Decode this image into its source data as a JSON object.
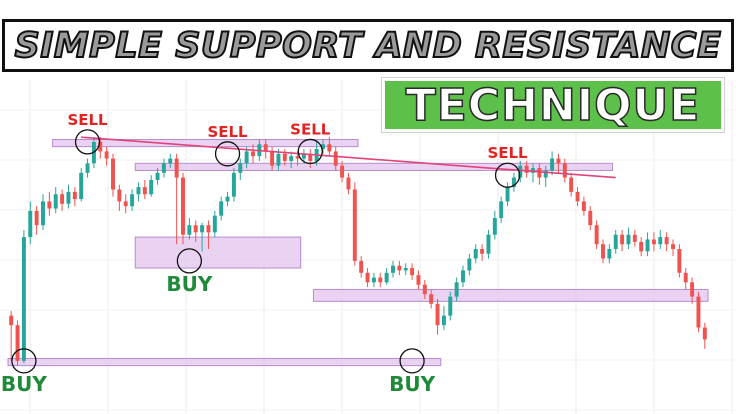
{
  "title": "SIMPLE SUPPORT AND RESISTANCE",
  "subtitle": "TECHNIQUE",
  "colors": {
    "up": "#26a69a",
    "down": "#ef5350",
    "zone_fill": "#e2c3ee",
    "zone_stroke": "#b98bcf",
    "trendline": "#e0447a",
    "sell_text": "#e02424",
    "buy_text": "#1f8a3a",
    "title_fill": "#9a9a9a",
    "subtitle_bg": "#5cc04a"
  },
  "chart_data": {
    "type": "candlestick",
    "y_range": [
      0,
      100
    ],
    "candle_count": 110,
    "candles": [
      [
        22,
        18,
        24,
        3
      ],
      [
        18,
        3,
        20,
        1
      ],
      [
        3,
        55,
        58,
        2
      ],
      [
        55,
        66,
        70,
        52
      ],
      [
        66,
        60,
        68,
        56
      ],
      [
        60,
        70,
        73,
        58
      ],
      [
        70,
        67,
        74,
        64
      ],
      [
        67,
        73,
        76,
        65
      ],
      [
        73,
        69,
        75,
        66
      ],
      [
        69,
        74,
        77,
        67
      ],
      [
        74,
        71,
        76,
        68
      ],
      [
        71,
        82,
        84,
        70
      ],
      [
        82,
        86,
        88,
        80
      ],
      [
        86,
        95,
        97,
        84
      ],
      [
        95,
        91,
        97,
        88
      ],
      [
        91,
        88,
        93,
        85
      ],
      [
        88,
        75,
        90,
        72
      ],
      [
        75,
        70,
        77,
        66
      ],
      [
        70,
        68,
        73,
        65
      ],
      [
        68,
        73,
        75,
        66
      ],
      [
        73,
        76,
        78,
        70
      ],
      [
        76,
        73,
        79,
        71
      ],
      [
        73,
        79,
        81,
        72
      ],
      [
        79,
        82,
        84,
        77
      ],
      [
        82,
        86,
        88,
        80
      ],
      [
        86,
        88,
        90,
        84
      ],
      [
        88,
        80,
        90,
        52
      ],
      [
        80,
        56,
        82,
        52
      ],
      [
        56,
        60,
        63,
        54
      ],
      [
        60,
        57,
        62,
        53
      ],
      [
        57,
        60,
        61,
        49
      ],
      [
        60,
        57,
        62,
        50
      ],
      [
        57,
        64,
        66,
        55
      ],
      [
        64,
        70,
        72,
        62
      ],
      [
        70,
        72,
        74,
        68
      ],
      [
        72,
        82,
        84,
        70
      ],
      [
        82,
        86,
        88,
        79
      ],
      [
        86,
        91,
        93,
        84
      ],
      [
        91,
        89,
        94,
        86
      ],
      [
        89,
        94,
        96,
        87
      ],
      [
        94,
        91,
        96,
        88
      ],
      [
        91,
        85,
        93,
        83
      ],
      [
        85,
        90,
        92,
        83
      ],
      [
        90,
        87,
        92,
        85
      ],
      [
        87,
        89,
        91,
        84
      ],
      [
        89,
        88,
        91,
        85
      ],
      [
        88,
        90,
        92,
        86
      ],
      [
        90,
        87,
        92,
        84
      ],
      [
        87,
        92,
        95,
        85
      ],
      [
        92,
        94,
        96,
        90
      ],
      [
        94,
        91,
        97,
        89
      ],
      [
        91,
        85,
        93,
        83
      ],
      [
        85,
        80,
        87,
        78
      ],
      [
        80,
        75,
        82,
        73
      ],
      [
        75,
        45,
        78,
        43
      ],
      [
        45,
        40,
        47,
        38
      ],
      [
        40,
        36,
        42,
        34
      ],
      [
        36,
        38,
        40,
        34
      ],
      [
        38,
        36,
        40,
        34
      ],
      [
        36,
        40,
        42,
        35
      ],
      [
        40,
        43,
        45,
        38
      ],
      [
        43,
        41,
        45,
        39
      ],
      [
        41,
        42,
        44,
        39
      ],
      [
        42,
        39,
        44,
        37
      ],
      [
        39,
        35,
        41,
        33
      ],
      [
        35,
        31,
        37,
        29
      ],
      [
        31,
        27,
        33,
        25
      ],
      [
        27,
        18,
        29,
        14
      ],
      [
        18,
        22,
        26,
        16
      ],
      [
        22,
        30,
        32,
        20
      ],
      [
        30,
        36,
        38,
        28
      ],
      [
        36,
        41,
        43,
        34
      ],
      [
        41,
        46,
        48,
        39
      ],
      [
        46,
        50,
        52,
        44
      ],
      [
        50,
        48,
        52,
        45
      ],
      [
        48,
        56,
        58,
        46
      ],
      [
        56,
        63,
        66,
        54
      ],
      [
        63,
        70,
        72,
        61
      ],
      [
        70,
        76,
        78,
        68
      ],
      [
        76,
        80,
        82,
        74
      ],
      [
        80,
        85,
        87,
        78
      ],
      [
        85,
        82,
        87,
        80
      ],
      [
        82,
        84,
        86,
        78
      ],
      [
        84,
        80,
        86,
        77
      ],
      [
        80,
        83,
        85,
        76
      ],
      [
        83,
        88,
        91,
        81
      ],
      [
        88,
        86,
        90,
        82
      ],
      [
        86,
        80,
        88,
        78
      ],
      [
        80,
        74,
        82,
        72
      ],
      [
        74,
        70,
        76,
        68
      ],
      [
        70,
        66,
        72,
        64
      ],
      [
        66,
        60,
        68,
        58
      ],
      [
        60,
        52,
        62,
        50
      ],
      [
        52,
        46,
        54,
        44
      ],
      [
        46,
        50,
        52,
        44
      ],
      [
        50,
        56,
        58,
        48
      ],
      [
        56,
        52,
        58,
        49
      ],
      [
        52,
        56,
        59,
        50
      ],
      [
        56,
        53,
        58,
        51
      ],
      [
        53,
        49,
        55,
        47
      ],
      [
        49,
        54,
        57,
        47
      ],
      [
        54,
        52,
        57,
        49
      ],
      [
        52,
        55,
        58,
        50
      ],
      [
        55,
        52,
        57,
        49
      ],
      [
        52,
        50,
        54,
        47
      ],
      [
        50,
        40,
        52,
        38
      ],
      [
        40,
        36,
        42,
        33
      ],
      [
        36,
        30,
        38,
        27
      ],
      [
        30,
        17,
        32,
        15
      ],
      [
        17,
        12,
        19,
        8
      ]
    ],
    "zones": [
      {
        "label": "resistance-top",
        "from_index": 7,
        "to_index": 55,
        "bottom": 93,
        "top": 96
      },
      {
        "label": "resistance-mid",
        "from_index": 20,
        "to_index": 95,
        "bottom": 83,
        "top": 86
      },
      {
        "label": "support-mid",
        "from_index": 20,
        "to_index": 46,
        "bottom": 42,
        "top": 55
      },
      {
        "label": "support-right",
        "from_index": 48,
        "to_index": 110,
        "bottom": 28,
        "top": 33
      },
      {
        "label": "support-bottom",
        "from_index": 0,
        "to_index": 68,
        "bottom": 1,
        "top": 4
      }
    ],
    "trendline": {
      "from_index": 11,
      "from_value": 97,
      "to_index": 95,
      "to_value": 80
    },
    "signals": [
      {
        "text": "SELL",
        "type": "sell",
        "index": 12,
        "value": 95,
        "label_side": "above"
      },
      {
        "text": "SELL",
        "type": "sell",
        "index": 34,
        "value": 90,
        "label_side": "above"
      },
      {
        "text": "SELL",
        "type": "sell",
        "index": 47,
        "value": 91,
        "label_side": "above"
      },
      {
        "text": "SELL",
        "type": "sell",
        "index": 78,
        "value": 81,
        "label_side": "above"
      },
      {
        "text": "BUY",
        "type": "buy",
        "index": 28,
        "value": 45,
        "label_side": "below"
      },
      {
        "text": "BUY",
        "type": "buy",
        "index": 2,
        "value": 3,
        "label_side": "below"
      },
      {
        "text": "BUY",
        "type": "buy",
        "index": 63,
        "value": 3,
        "label_side": "below"
      }
    ]
  }
}
